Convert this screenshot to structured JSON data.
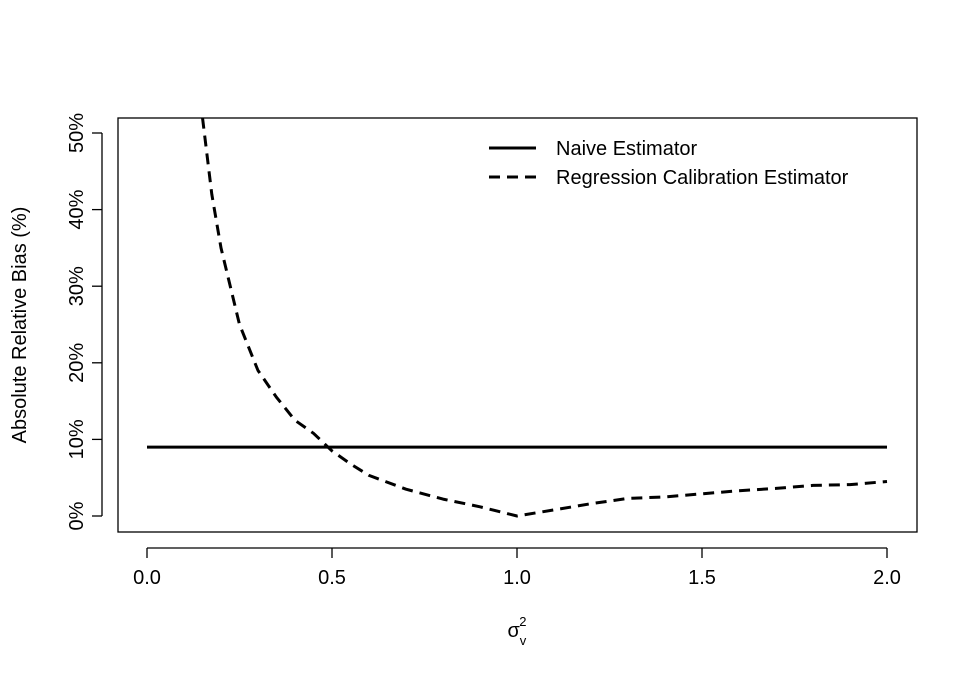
{
  "chart_data": {
    "type": "line",
    "xlabel": "σ",
    "xlabel_superscript": "2",
    "xlabel_subscript": "v",
    "ylabel": "Absolute Relative Bias (%)",
    "xlim": [
      0,
      2
    ],
    "ylim": [
      0,
      50
    ],
    "x_ticks": [
      0,
      0.5,
      1,
      1.5,
      2
    ],
    "x_tick_labels": [
      "0.0",
      "0.5",
      "1.0",
      "1.5",
      "2.0"
    ],
    "y_ticks": [
      0,
      10,
      20,
      30,
      40,
      50
    ],
    "y_tick_labels": [
      "0%",
      "10%",
      "20%",
      "30%",
      "40%",
      "50%"
    ],
    "grid": false,
    "legend_position": "top-right",
    "series": [
      {
        "name": "Naive Estimator",
        "line_style": "solid",
        "color": "#000000",
        "x": [
          0,
          2
        ],
        "y": [
          9,
          9
        ]
      },
      {
        "name": "Regression Calibration Estimator",
        "line_style": "dashed",
        "color": "#000000",
        "x": [
          0.15,
          0.175,
          0.2,
          0.25,
          0.3,
          0.35,
          0.4,
          0.45,
          0.5,
          0.55,
          0.6,
          0.7,
          0.8,
          0.9,
          1.0,
          1.1,
          1.2,
          1.3,
          1.4,
          1.5,
          1.6,
          1.7,
          1.8,
          1.9,
          2.0
        ],
        "y": [
          52.0,
          42.0,
          35.0,
          25.0,
          19.0,
          15.5,
          12.5,
          10.8,
          8.5,
          6.8,
          5.3,
          3.5,
          2.2,
          1.2,
          0.0,
          0.8,
          1.6,
          2.3,
          2.5,
          2.9,
          3.3,
          3.6,
          4.0,
          4.1,
          4.5
        ]
      }
    ]
  }
}
